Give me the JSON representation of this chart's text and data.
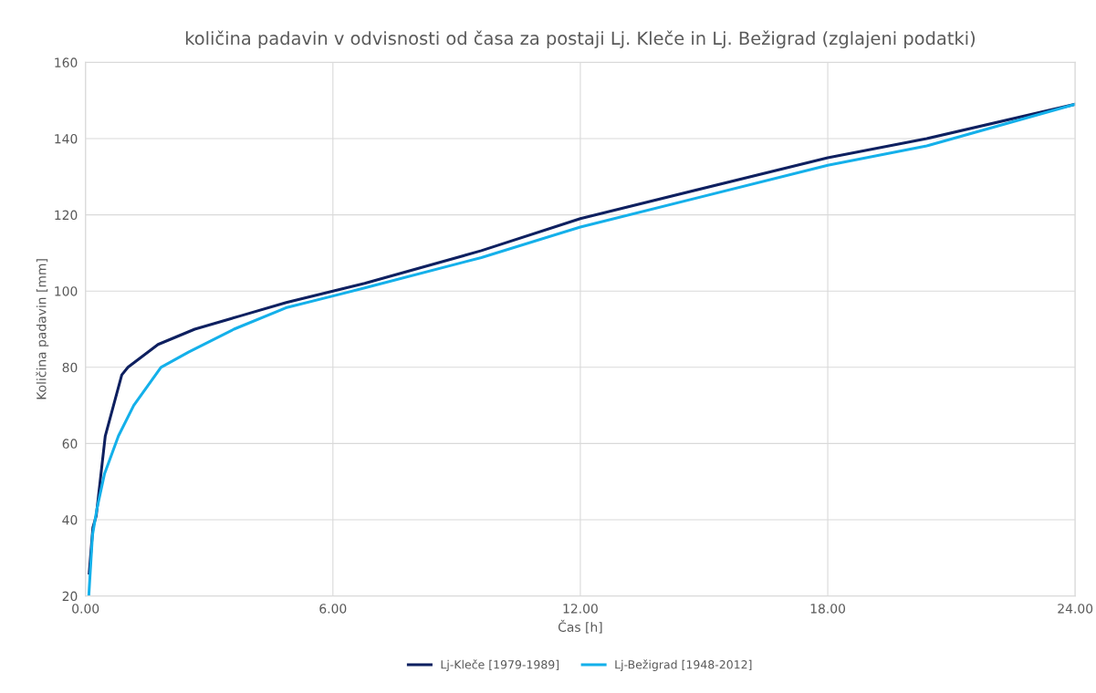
{
  "chart_data": {
    "type": "line",
    "title": "količina padavin v odvisnosti od časa za postaji Lj. Kleče in Lj. Bežigrad (zglajeni podatki)",
    "xlabel": "Čas [h]",
    "ylabel": "Količina padavin [mm]",
    "xlim": [
      0,
      24
    ],
    "ylim": [
      20,
      160
    ],
    "xticks": [
      {
        "value": 0,
        "label": "0.00"
      },
      {
        "value": 6,
        "label": "6.00"
      },
      {
        "value": 12,
        "label": "12.00"
      },
      {
        "value": 18,
        "label": "18.00"
      },
      {
        "value": 24,
        "label": "24.00"
      }
    ],
    "yticks": [
      20,
      40,
      60,
      80,
      100,
      120,
      140,
      160
    ],
    "grid": true,
    "legend": "bottom",
    "marker": "none",
    "line_style": "solid",
    "series": [
      {
        "name": "Lj-Kleče [1979-1989]",
        "color": "#0e2060",
        "x": [
          0.09,
          0.18,
          0.26,
          0.48,
          0.88,
          1.03,
          1.76,
          2.65,
          3.76,
          4.87,
          6,
          6.77,
          9.6,
          12,
          18,
          20.4,
          24
        ],
        "values": [
          26,
          38,
          41,
          62,
          78,
          80,
          86,
          90,
          93.5,
          97,
          100,
          102,
          110.6,
          119,
          135,
          140,
          149
        ]
      },
      {
        "name": "Lj-Bežigrad [1948-2012]",
        "color": "#14b0ea",
        "x": [
          0.08,
          0.17,
          0.28,
          0.46,
          0.8,
          1.17,
          1.83,
          2.5,
          3.6,
          4.86,
          6,
          6.77,
          9.6,
          12,
          18,
          20.4,
          24
        ],
        "values": [
          20,
          36,
          43,
          52,
          62,
          70,
          80,
          84,
          90,
          95.6,
          98.7,
          100.8,
          108.8,
          116.8,
          133,
          138.1,
          149
        ]
      }
    ]
  }
}
